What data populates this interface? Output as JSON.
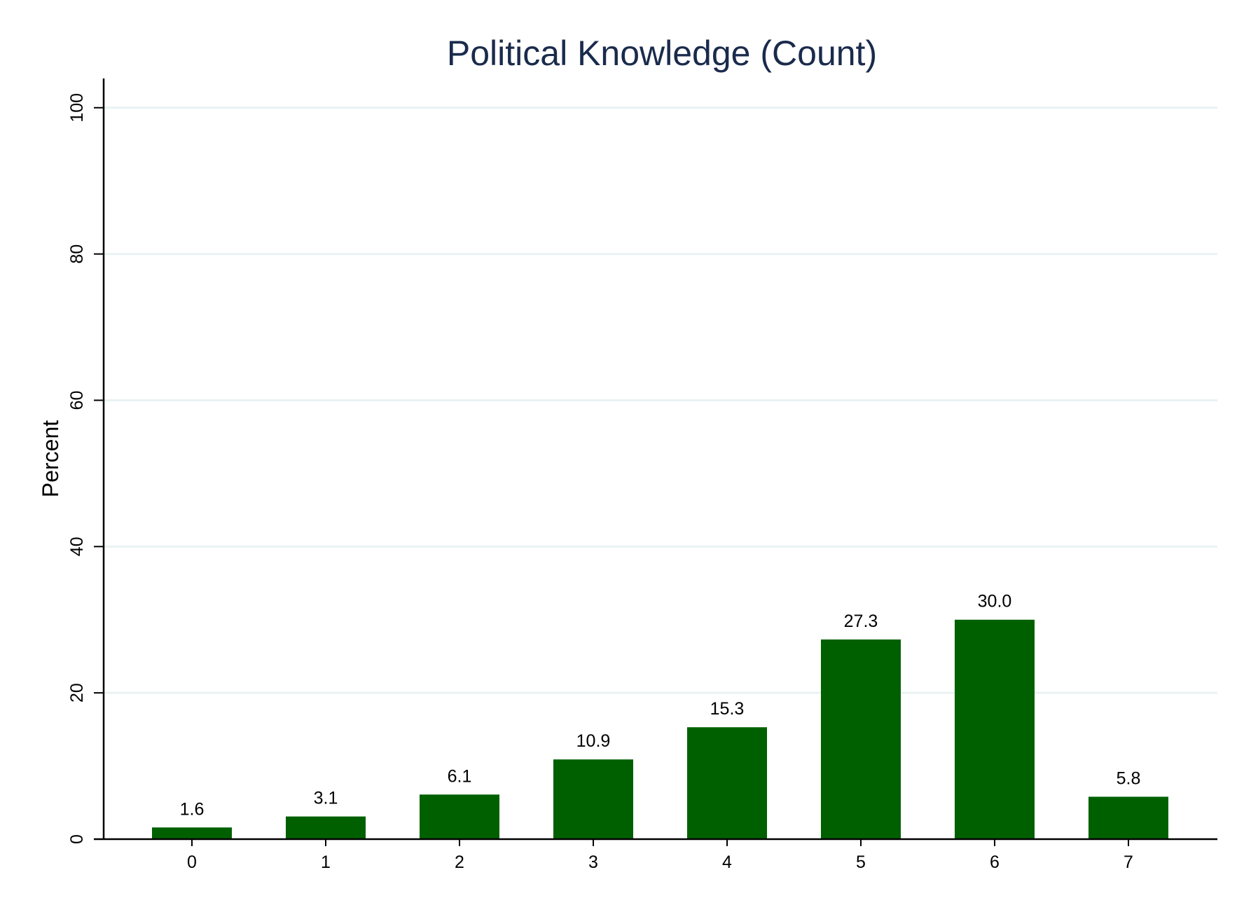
{
  "chart_data": {
    "type": "bar",
    "title": "Political Knowledge (Count)",
    "xlabel": "",
    "ylabel": "Percent",
    "categories": [
      "0",
      "1",
      "2",
      "3",
      "4",
      "5",
      "6",
      "7"
    ],
    "values": [
      1.6,
      3.1,
      6.1,
      10.9,
      15.3,
      27.3,
      30.0,
      5.8
    ],
    "data_labels": [
      "1.6",
      "3.1",
      "6.1",
      "10.9",
      "15.3",
      "27.3",
      "30.0",
      "5.8"
    ],
    "y_ticks": [
      0,
      20,
      40,
      60,
      80,
      100
    ],
    "y_tick_labels": [
      "0",
      "20",
      "40",
      "60",
      "80",
      "100"
    ],
    "ylim": [
      0,
      104
    ],
    "grid": true,
    "legend": "none",
    "colors": {
      "bar": "#006000",
      "grid": "#eaf2f3",
      "axis": "#000000",
      "title": "#1a2b4c"
    }
  }
}
